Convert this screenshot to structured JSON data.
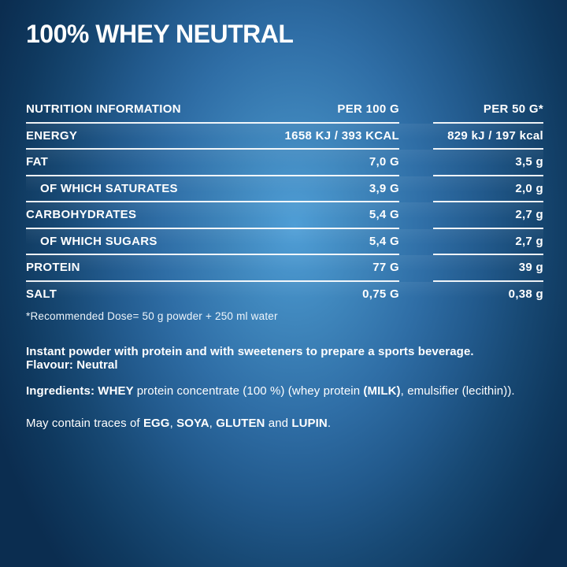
{
  "page": {
    "title": "100% WHEY NEUTRAL",
    "colors": {
      "background_center": "#4d9bd3",
      "background_edge": "#0b2d50",
      "text": "#ffffff",
      "rule": "#f4fafd"
    }
  },
  "nutrition_table": {
    "columns": [
      "NUTRITION INFORMATION",
      "PER 100 G",
      "PER 50 G*"
    ],
    "rows": [
      {
        "label": "ENERGY",
        "per_100g": "1658 KJ / 393 KCAL",
        "per_50g": "829 kJ / 197 kcal",
        "indent": false
      },
      {
        "label": "FAT",
        "per_100g": "7,0 G",
        "per_50g": "3,5 g",
        "indent": false
      },
      {
        "label": "OF WHICH SATURATES",
        "per_100g": "3,9 G",
        "per_50g": "2,0 g",
        "indent": true
      },
      {
        "label": "CARBOHYDRATES",
        "per_100g": "5,4 G",
        "per_50g": "2,7 g",
        "indent": false
      },
      {
        "label": "OF WHICH SUGARS",
        "per_100g": "5,4 G",
        "per_50g": "2,7 g",
        "indent": true
      },
      {
        "label": "PROTEIN",
        "per_100g": "77 G",
        "per_50g": "39 g",
        "indent": false
      },
      {
        "label": "SALT",
        "per_100g": "0,75 G",
        "per_50g": "0,38 g",
        "indent": false
      }
    ],
    "footnote": "*Recommended Dose= 50 g powder + 250 ml water"
  },
  "description": {
    "paragraphs": [
      [
        {
          "text": "Instant powder with protein and with sweeteners to prepare a sports beverage.",
          "bold": true
        },
        {
          "br": true
        },
        {
          "text": "Flavour: Neutral",
          "bold": true
        }
      ],
      [
        {
          "text": "Ingredients: WHEY ",
          "bold": true
        },
        {
          "text": "protein concentrate (100 %) (whey protein ",
          "bold": false
        },
        {
          "text": "(MILK)",
          "bold": true
        },
        {
          "text": ", emulsifier (lecithin)).",
          "bold": false
        }
      ],
      [
        {
          "text": "May contain traces of ",
          "bold": false
        },
        {
          "text": "EGG",
          "bold": true
        },
        {
          "text": ", ",
          "bold": false
        },
        {
          "text": "SOYA",
          "bold": true
        },
        {
          "text": ", ",
          "bold": false
        },
        {
          "text": "GLUTEN",
          "bold": true
        },
        {
          "text": " and ",
          "bold": false
        },
        {
          "text": "LUPIN",
          "bold": true
        },
        {
          "text": ".",
          "bold": false
        }
      ]
    ]
  }
}
